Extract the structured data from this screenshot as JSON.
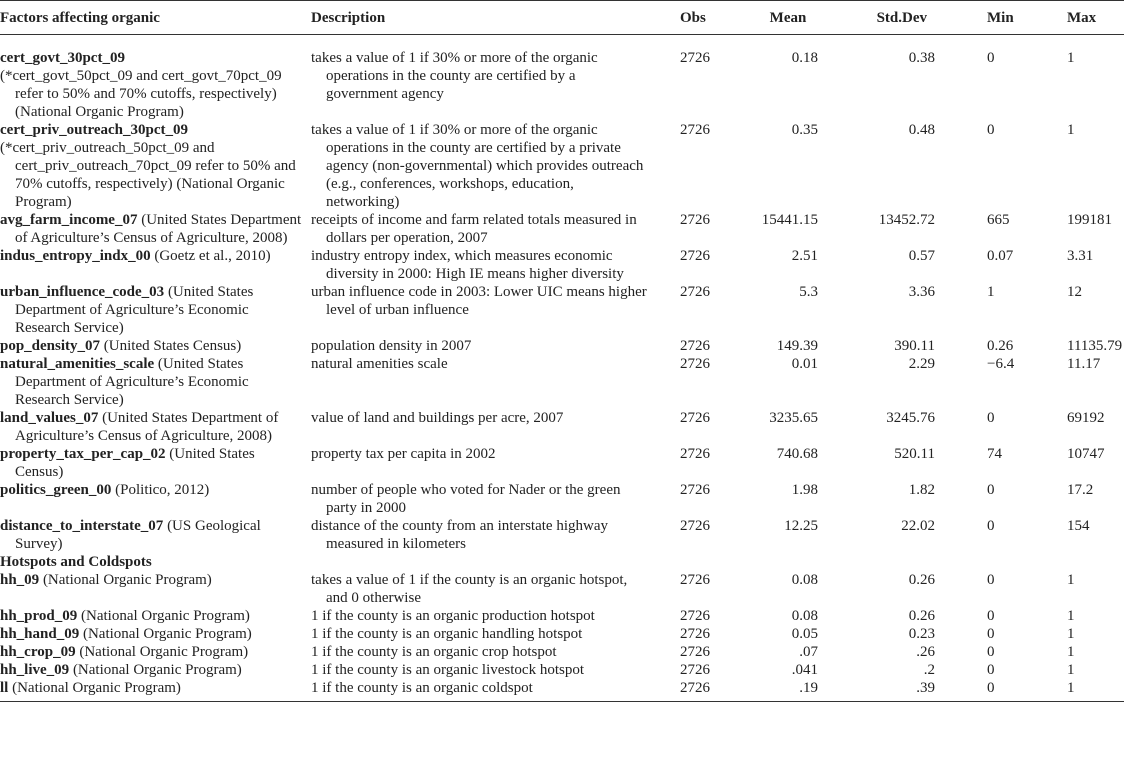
{
  "table": {
    "columns": [
      "Factors affecting organic",
      "Description",
      "Obs",
      "Mean",
      "Std.Dev",
      "Min",
      "Max"
    ],
    "groups": [
      {
        "rows": [
          {
            "name": "cert_govt_30pct_09",
            "source": "(*cert_govt_50pct_09 and cert_govt_70pct_09 refer to 50% and 70% cutoffs, respectively) (National Organic Program)",
            "description": "takes a value of 1 if 30% or more of the organic operations in the county are certified by a government agency",
            "obs": "2726",
            "mean": "0.18",
            "std_dev": "0.38",
            "min": "0",
            "max": "1"
          },
          {
            "name": "cert_priv_outreach_30pct_09",
            "source": "(*cert_priv_outreach_50pct_09 and cert_priv_outreach_70pct_09 refer to 50% and 70% cutoffs, respectively) (National Organic Program)",
            "description": "takes a value of 1 if 30% or more of the organic operations in the county are certified by a private agency (non-governmental) which provides outreach (e.g., conferences, workshops, education, networking)",
            "obs": "2726",
            "mean": "0.35",
            "std_dev": "0.48",
            "min": "0",
            "max": "1"
          },
          {
            "name": "avg_farm_income_07",
            "source": "(United States Department of Agriculture’s Census of Agriculture, 2008)",
            "description": "receipts of income and farm related totals measured in dollars per operation, 2007",
            "obs": "2726",
            "mean": "15441.15",
            "std_dev": "13452.72",
            "min": "665",
            "max": "199181"
          },
          {
            "name": "indus_entropy_indx_00",
            "source": "(Goetz et al., 2010)",
            "description": "industry entropy index, which measures economic diversity in 2000: High IE means higher diversity",
            "obs": "2726",
            "mean": "2.51",
            "std_dev": "0.57",
            "min": "0.07",
            "max": "3.31"
          },
          {
            "name": "urban_influence_code_03",
            "source": "(United States Department of Agriculture’s Economic Research Service)",
            "description": "urban influence code in 2003: Lower UIC means higher level of urban influence",
            "obs": "2726",
            "mean": "5.3",
            "std_dev": "3.36",
            "min": "1",
            "max": "12"
          },
          {
            "name": "pop_density_07",
            "source": "(United States Census)",
            "description": "population density in 2007",
            "obs": "2726",
            "mean": "149.39",
            "std_dev": "390.11",
            "min": "0.26",
            "max": "11135.79"
          },
          {
            "name": "natural_amenities_scale",
            "source": "(United States Department of Agriculture’s Economic Research Service)",
            "description": "natural amenities scale",
            "obs": "2726",
            "mean": "0.01",
            "std_dev": "2.29",
            "min": "−6.4",
            "max": "11.17"
          },
          {
            "name": "land_values_07",
            "source": "(United States Department of Agriculture’s Census of Agriculture, 2008)",
            "description": "value of land and buildings per acre, 2007",
            "obs": "2726",
            "mean": "3235.65",
            "std_dev": "3245.76",
            "min": "0",
            "max": "69192"
          },
          {
            "name": "property_tax_per_cap_02",
            "source": "(United States Census)",
            "description": "property tax per capita in 2002",
            "obs": "2726",
            "mean": "740.68",
            "std_dev": "520.11",
            "min": "74",
            "max": "10747"
          },
          {
            "name": "politics_green_00",
            "source": "(Politico, 2012)",
            "description": "number of people who voted for Nader or the green party in 2000",
            "obs": "2726",
            "mean": "1.98",
            "std_dev": "1.82",
            "min": "0",
            "max": "17.2"
          },
          {
            "name": "distance_to_interstate_07",
            "source": "(US Geological Survey)",
            "description": "distance of the county from an interstate highway measured in kilometers",
            "obs": "2726",
            "mean": "12.25",
            "std_dev": "22.02",
            "min": "0",
            "max": "154"
          }
        ]
      },
      {
        "title": "Hotspots and Coldspots",
        "rows": [
          {
            "name": "hh_09",
            "source": "(National Organic Program)",
            "description": "takes a value of 1 if the county is an organic hotspot, and 0 otherwise",
            "obs": "2726",
            "mean": "0.08",
            "std_dev": "0.26",
            "min": "0",
            "max": "1"
          },
          {
            "name": "hh_prod_09",
            "source": "(National Organic Program)",
            "description": "1 if the county is an organic production hotspot",
            "obs": "2726",
            "mean": "0.08",
            "std_dev": "0.26",
            "min": "0",
            "max": "1"
          },
          {
            "name": "hh_hand_09",
            "source": "(National Organic Program)",
            "description": "1 if the county is an organic handling hotspot",
            "obs": "2726",
            "mean": "0.05",
            "std_dev": "0.23",
            "min": "0",
            "max": "1"
          },
          {
            "name": "hh_crop_09",
            "source": "(National Organic Program)",
            "description": "1 if the county is an organic crop hotspot",
            "obs": "2726",
            "mean": ".07",
            "std_dev": ".26",
            "min": "0",
            "max": "1"
          },
          {
            "name": "hh_live_09",
            "source": "(National Organic Program)",
            "description": "1 if the county is an organic livestock hotspot",
            "obs": "2726",
            "mean": ".041",
            "std_dev": ".2",
            "min": "0",
            "max": "1"
          },
          {
            "name": "ll",
            "source": "(National Organic Program)",
            "description": "1 if the county is an organic coldspot",
            "obs": "2726",
            "mean": ".19",
            "std_dev": ".39",
            "min": "0",
            "max": "1"
          }
        ]
      }
    ]
  }
}
